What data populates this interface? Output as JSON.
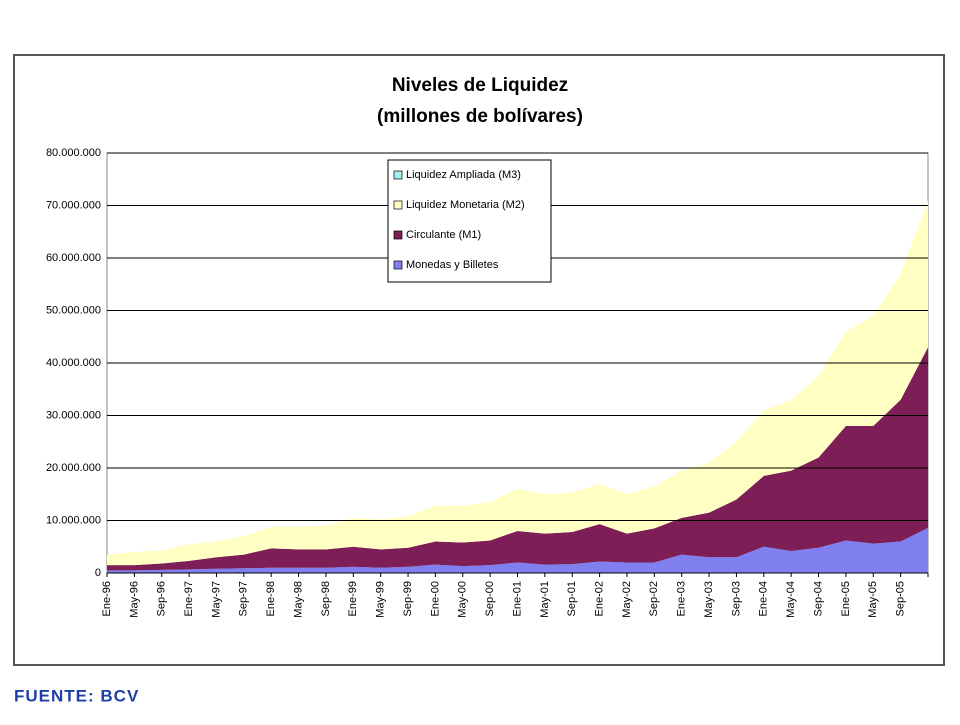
{
  "chart_data": {
    "type": "stacked_area",
    "title": "Niveles de Liquidez",
    "subtitle": "(millones de bolívares)",
    "source": "FUENTE: BCV",
    "categories": [
      "Ene-96",
      "May-96",
      "Sep-96",
      "Ene-97",
      "May-97",
      "Sep-97",
      "Ene-98",
      "May-98",
      "Sep-98",
      "Ene-99",
      "May-99",
      "Sep-99",
      "Ene-00",
      "May-00",
      "Sep-00",
      "Ene-01",
      "May-01",
      "Sep-01",
      "Ene-02",
      "May-02",
      "Sep-02",
      "Ene-03",
      "May-03",
      "Sep-03",
      "Ene-04",
      "May-04",
      "Sep-04",
      "Ene-05",
      "May-05",
      "Sep-05",
      null
    ],
    "series": [
      {
        "name": "Monedas y Billetes",
        "color": "#7f7ff0",
        "values": [
          500000,
          500000,
          600000,
          700000,
          800000,
          900000,
          1000000,
          1000000,
          1000000,
          1200000,
          1000000,
          1200000,
          1600000,
          1300000,
          1500000,
          2000000,
          1600000,
          1700000,
          2200000,
          2000000,
          2000000,
          3500000,
          3000000,
          3000000,
          5000000,
          4200000,
          4800000,
          6200000,
          5600000,
          6000000,
          8600000
        ]
      },
      {
        "name": "Circulante (M1)",
        "color": "#7d1f56",
        "values": [
          1000000,
          1000000,
          1200000,
          1600000,
          2200000,
          2600000,
          3700000,
          3500000,
          3500000,
          3800000,
          3500000,
          3600000,
          4400000,
          4500000,
          4700000,
          6000000,
          5900000,
          6100000,
          7100000,
          5500000,
          6500000,
          7000000,
          8500000,
          11000000,
          13500000,
          15300000,
          17200000,
          21800000,
          22400000,
          27000000,
          34400000
        ]
      },
      {
        "name": "Liquidez Monetaria (M2)",
        "color": "#ffffc4",
        "values": [
          2000000,
          2500000,
          2500000,
          3200000,
          3000000,
          3500000,
          4100000,
          4300000,
          4500000,
          5500000,
          5700000,
          6000000,
          6800000,
          7000000,
          7300000,
          8000000,
          7500000,
          7500000,
          7700000,
          7500000,
          8000000,
          9000000,
          9500000,
          11000000,
          12500000,
          13500000,
          15500000,
          18000000,
          21000000,
          24000000,
          28000000
        ]
      },
      {
        "name": "Liquidez Ampliada (M3)",
        "color": "#a8ecec",
        "values": [
          0,
          0,
          0,
          0,
          0,
          0,
          0,
          0,
          0,
          0,
          0,
          0,
          0,
          0,
          0,
          0,
          0,
          0,
          0,
          0,
          0,
          0,
          0,
          0,
          0,
          0,
          0,
          0,
          0,
          0,
          0
        ]
      }
    ],
    "ylim": [
      0,
      80000000
    ],
    "yticks": [
      0,
      {
        "value": 10000000,
        "label": "10.000.000"
      },
      {
        "value": 20000000,
        "label": "20.000.000"
      },
      {
        "value": 30000000,
        "label": "30.000.000"
      },
      {
        "value": 40000000,
        "label": "40.000.000"
      },
      {
        "value": 50000000,
        "label": "50.000.000"
      },
      {
        "value": 60000000,
        "label": "60.000.000"
      },
      {
        "value": 70000000,
        "label": "70.000.000"
      },
      {
        "value": 80000000,
        "label": "80.000.000"
      }
    ],
    "grid": true,
    "legend": "top"
  }
}
